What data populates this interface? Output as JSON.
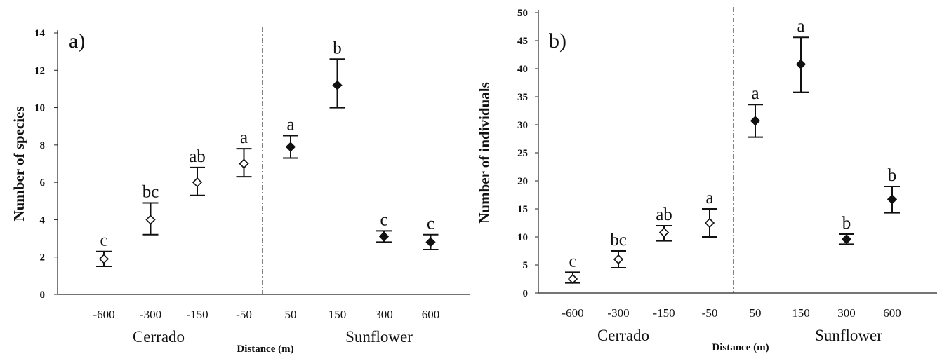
{
  "chart_data": [
    {
      "type": "scatter",
      "panel_label": "a)",
      "ylabel": "Number of species",
      "xlabel": "Distance (m)",
      "ylim": [
        0,
        14
      ],
      "yticks": [
        "0",
        "2",
        "4",
        "6",
        "8",
        "10",
        "12",
        "14"
      ],
      "categories": [
        "-600",
        "-300",
        "-150",
        "-50",
        "50",
        "150",
        "300",
        "600"
      ],
      "groups": [
        {
          "label": "Cerrado",
          "categories": [
            "-600",
            "-300",
            "-150",
            "-50"
          ],
          "marker": "open"
        },
        {
          "label": "Sunflower",
          "categories": [
            "50",
            "150",
            "300",
            "600"
          ],
          "marker": "filled"
        }
      ],
      "points": [
        {
          "x": "-600",
          "mean": 1.9,
          "low": 1.5,
          "high": 2.3,
          "letter": "c",
          "marker": "open"
        },
        {
          "x": "-300",
          "mean": 4.0,
          "low": 3.2,
          "high": 4.9,
          "letter": "bc",
          "marker": "open"
        },
        {
          "x": "-150",
          "mean": 6.0,
          "low": 5.3,
          "high": 6.8,
          "letter": "ab",
          "marker": "open"
        },
        {
          "x": "-50",
          "mean": 7.0,
          "low": 6.3,
          "high": 7.8,
          "letter": "a",
          "marker": "open"
        },
        {
          "x": "50",
          "mean": 7.9,
          "low": 7.3,
          "high": 8.5,
          "letter": "a",
          "marker": "filled"
        },
        {
          "x": "150",
          "mean": 11.2,
          "low": 10.0,
          "high": 12.6,
          "letter": "b",
          "marker": "filled"
        },
        {
          "x": "300",
          "mean": 3.1,
          "low": 2.8,
          "high": 3.4,
          "letter": "c",
          "marker": "filled"
        },
        {
          "x": "600",
          "mean": 2.8,
          "low": 2.4,
          "high": 3.2,
          "letter": "c",
          "marker": "filled"
        }
      ],
      "divider": "dash-dot line between -50 and 50"
    },
    {
      "type": "scatter",
      "panel_label": "b)",
      "ylabel": "Number of individuals",
      "xlabel": "Distance (m)",
      "ylim": [
        0,
        50
      ],
      "yticks": [
        "0",
        "5",
        "10",
        "15",
        "20",
        "25",
        "30",
        "35",
        "40",
        "45",
        "50"
      ],
      "categories": [
        "-600",
        "-300",
        "-150",
        "-50",
        "50",
        "150",
        "300",
        "600"
      ],
      "groups": [
        {
          "label": "Cerrado",
          "categories": [
            "-600",
            "-300",
            "-150",
            "-50"
          ],
          "marker": "open"
        },
        {
          "label": "Sunflower",
          "categories": [
            "50",
            "150",
            "300",
            "600"
          ],
          "marker": "filled"
        }
      ],
      "points": [
        {
          "x": "-600",
          "mean": 2.5,
          "low": 1.8,
          "high": 3.7,
          "letter": "c",
          "marker": "open"
        },
        {
          "x": "-300",
          "mean": 6.0,
          "low": 4.5,
          "high": 7.5,
          "letter": "bc",
          "marker": "open"
        },
        {
          "x": "-150",
          "mean": 10.8,
          "low": 9.3,
          "high": 12.0,
          "letter": "ab",
          "marker": "open"
        },
        {
          "x": "-50",
          "mean": 12.5,
          "low": 10.0,
          "high": 15.0,
          "letter": "a",
          "marker": "open"
        },
        {
          "x": "50",
          "mean": 30.7,
          "low": 27.8,
          "high": 33.6,
          "letter": "a",
          "marker": "filled"
        },
        {
          "x": "150",
          "mean": 40.8,
          "low": 35.8,
          "high": 45.6,
          "letter": "a",
          "marker": "filled"
        },
        {
          "x": "300",
          "mean": 9.6,
          "low": 8.7,
          "high": 10.5,
          "letter": "b",
          "marker": "filled"
        },
        {
          "x": "600",
          "mean": 16.7,
          "low": 14.3,
          "high": 19.0,
          "letter": "b",
          "marker": "filled"
        }
      ],
      "divider": "dash-dot line between -50 and 50"
    }
  ]
}
